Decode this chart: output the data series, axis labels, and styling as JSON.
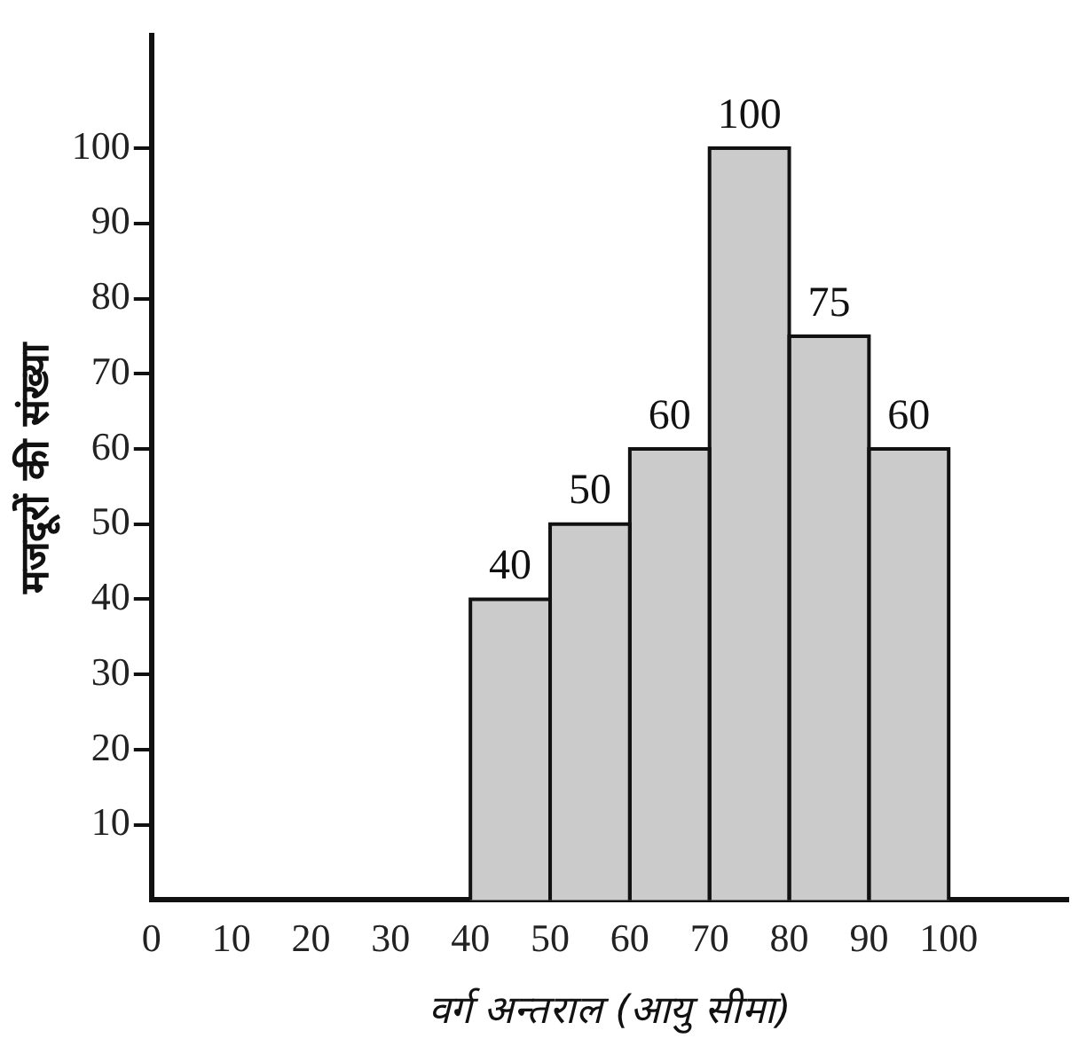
{
  "chart_data": {
    "type": "histogram",
    "xlabel": "वर्ग अन्तराल (आयु सीमा)",
    "ylabel": "मजदूरों की संख्या",
    "bins": [
      40,
      50,
      60,
      70,
      80,
      90,
      100
    ],
    "values": [
      40,
      50,
      60,
      100,
      75,
      60
    ],
    "color": "#cbcbcb",
    "xlim": [
      0,
      115
    ],
    "xticks": [
      0,
      10,
      20,
      30,
      40,
      50,
      60,
      70,
      80,
      90,
      100
    ],
    "ylim": [
      0,
      115
    ],
    "yticks": [
      10,
      20,
      30,
      40,
      50,
      60,
      70,
      80,
      90,
      100
    ],
    "data_labels": true
  }
}
